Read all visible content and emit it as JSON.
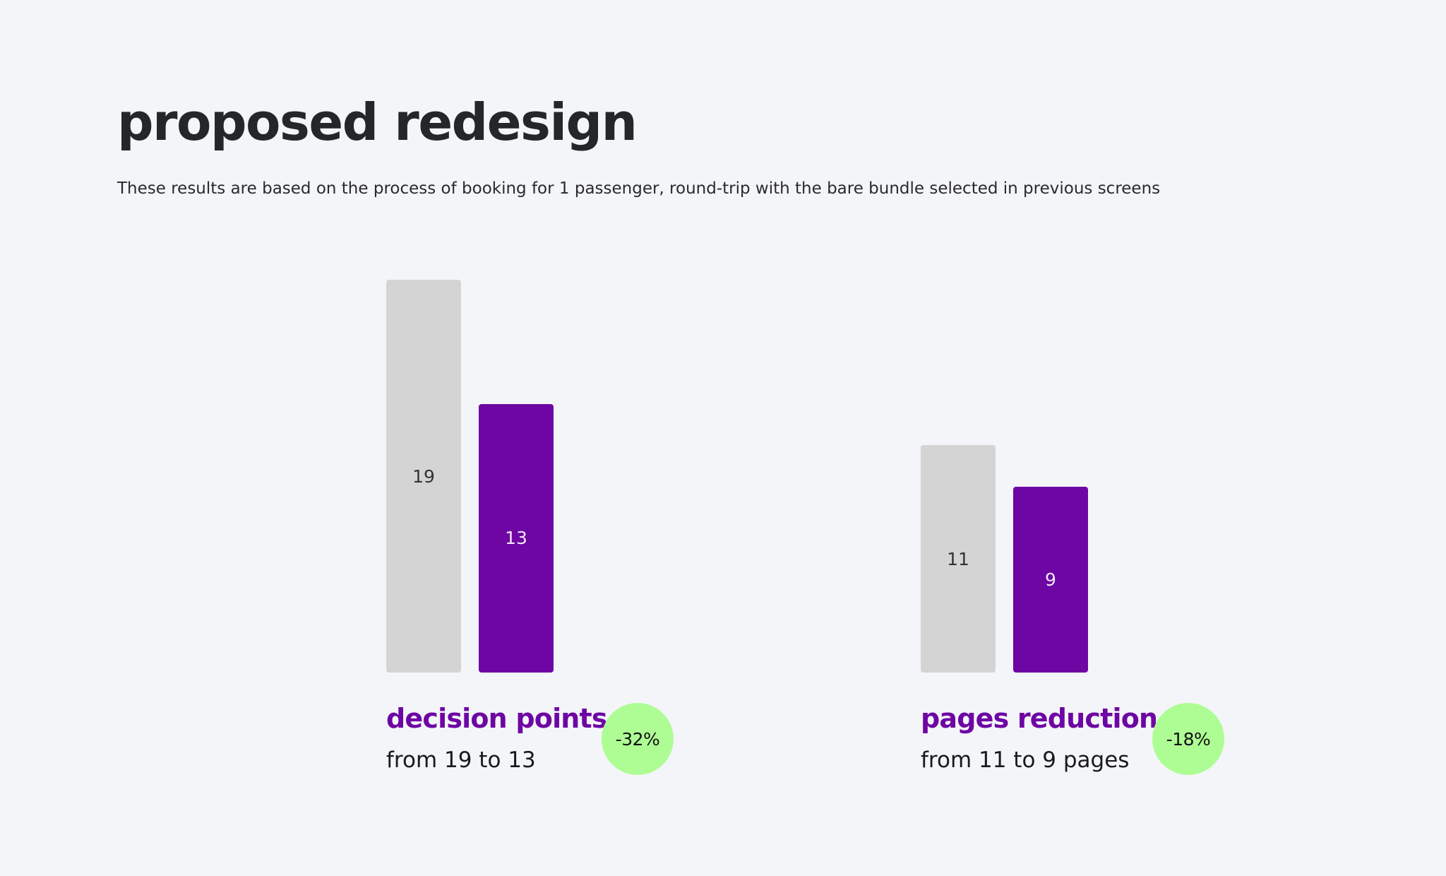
{
  "title": "proposed redesign",
  "subtitle": "These results are based on the process of booking for 1 passenger, round-trip with the bare bundle selected in previous screens",
  "colors": {
    "background": "#f3f5f8",
    "before_bar": "#d4d4d4",
    "after_bar": "#6e06a3",
    "badge": "#aefd94",
    "accent": "#6e06a3"
  },
  "chart_data": [
    {
      "type": "bar",
      "categories": [
        "",
        ""
      ],
      "values": [
        19,
        13
      ],
      "labels": [
        "19",
        "13"
      ],
      "ylim": [
        0,
        19
      ],
      "title": "decision points",
      "caption": "from 19 to 13",
      "change": "-32%",
      "grid": false
    },
    {
      "type": "bar",
      "categories": [
        "",
        ""
      ],
      "values": [
        11,
        9
      ],
      "labels": [
        "11",
        "9"
      ],
      "ylim": [
        0,
        19
      ],
      "title": "pages reduction",
      "caption": "from 11 to 9 pages",
      "change": "-18%",
      "grid": false
    }
  ]
}
